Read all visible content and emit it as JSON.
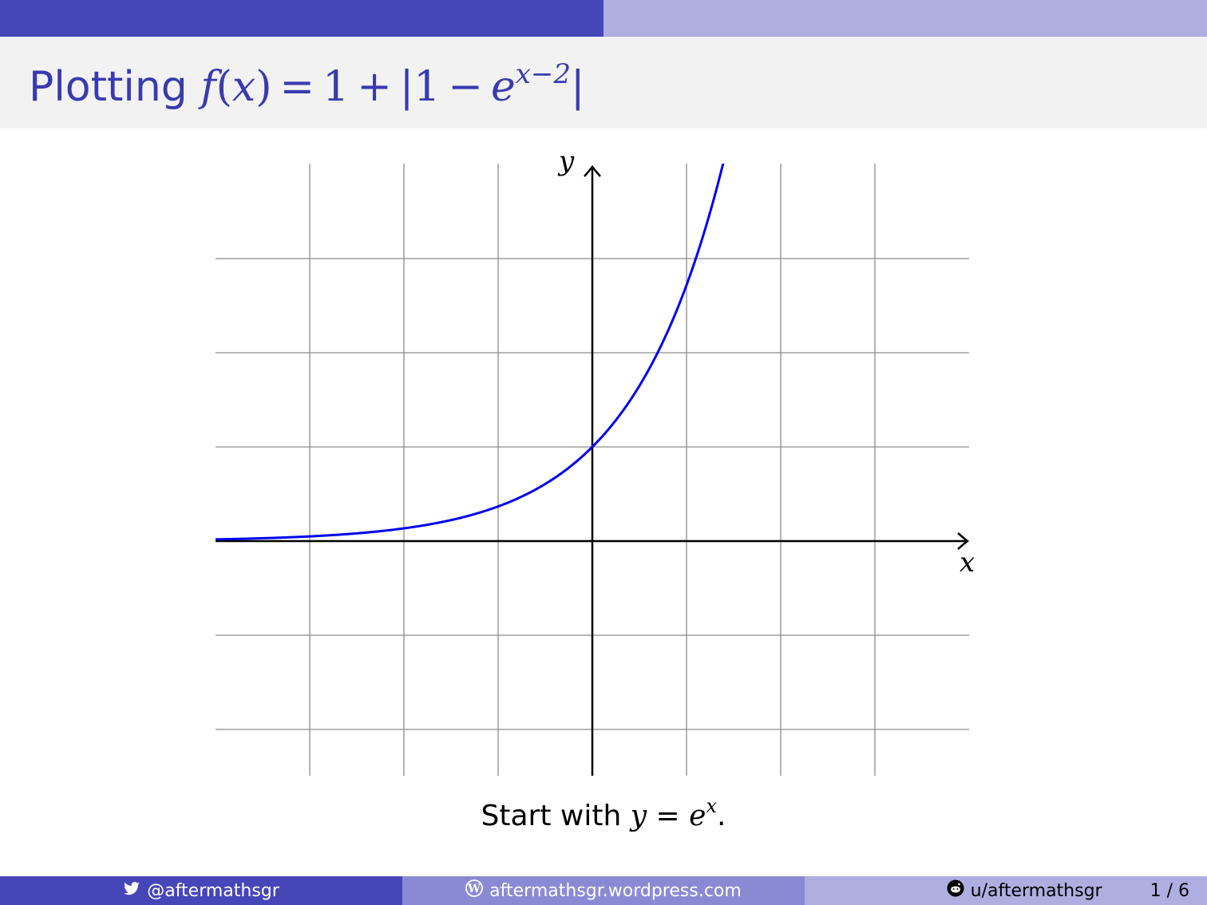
{
  "slide": {
    "title": {
      "prefix": "Plotting",
      "f": "f",
      "lparen": "(",
      "x": "x",
      "rparen": ")",
      "eq": "=",
      "one": "1",
      "plus": "+",
      "bar1": "|",
      "one_b": "1",
      "minus": "−",
      "e": "e",
      "exponent": "x−2",
      "bar2": "|"
    },
    "caption": {
      "text": "Start with",
      "y": "y",
      "eq": "=",
      "e": "e",
      "exp": "x",
      "period": "."
    }
  },
  "progress": {
    "fraction": 0.5
  },
  "chart_data": {
    "type": "line",
    "xlabel": "x",
    "ylabel": "y",
    "xlim": [
      -4,
      4
    ],
    "ylim": [
      -2.5,
      4
    ],
    "grid": true,
    "grid_step": 1,
    "series": [
      {
        "function": "exp(x)",
        "color": "#0000ee",
        "x_range": [
          -4,
          1.4
        ]
      }
    ]
  },
  "footer": {
    "twitter": "@aftermathsgr",
    "wordpress": "aftermathsgr.wordpress.com",
    "reddit": "u/aftermathsgr",
    "page": "1 / 6"
  },
  "colors": {
    "accent": "#4646b9",
    "accent_light": "#aeaee0",
    "accent_mid": "#8a8ad4",
    "title_band": "#f2f2f2",
    "curve": "#0000ee"
  },
  "icons": [
    "twitter-icon",
    "wordpress-icon",
    "reddit-icon"
  ]
}
